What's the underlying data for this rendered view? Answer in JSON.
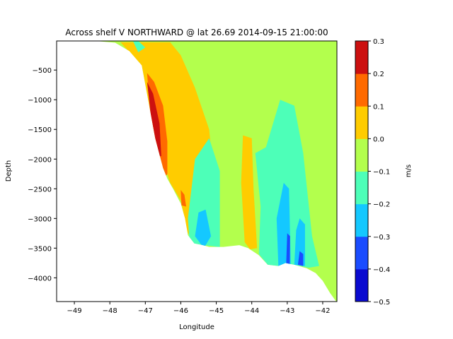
{
  "chart_data": {
    "type": "contourf",
    "title": "Across shelf V NORTHWARD @ lat 26.69 2014-09-15 21:00:00",
    "xlabel": "Longitude",
    "ylabel": "Depth",
    "xlim": [
      -49.5,
      -41.6
    ],
    "ylim": [
      -4400,
      -10
    ],
    "xticks": [
      -49,
      -48,
      -47,
      -46,
      -45,
      -44,
      -43,
      -42
    ],
    "xtick_labels": [
      "−49",
      "−48",
      "−47",
      "−46",
      "−45",
      "−44",
      "−43",
      "−42"
    ],
    "yticks": [
      -500,
      -1000,
      -1500,
      -2000,
      -2500,
      -3000,
      -3500,
      -4000
    ],
    "ytick_labels": [
      "−500",
      "−1000",
      "−1500",
      "−2000",
      "−2500",
      "−3000",
      "−3500",
      "−4000"
    ],
    "colorbar": {
      "label": "m/s",
      "levels": [
        -0.5,
        -0.4,
        -0.3,
        -0.2,
        -0.1,
        0.0,
        0.1,
        0.2,
        0.3
      ],
      "tick_labels": [
        "−0.5",
        "−0.4",
        "−0.3",
        "−0.2",
        "−0.1",
        "0.0",
        "0.1",
        "0.2",
        "0.3"
      ],
      "colors": [
        "#0a0ad0",
        "#1a4cff",
        "#14c8ff",
        "#4dffb8",
        "#b3ff4d",
        "#ffcc00",
        "#ff6a00",
        "#cc1010"
      ]
    },
    "bathymetry": [
      [
        -48.4,
        -10
      ],
      [
        -47.85,
        -40
      ],
      [
        -47.45,
        -180
      ],
      [
        -47.1,
        -420
      ],
      [
        -46.92,
        -1000
      ],
      [
        -46.72,
        -1650
      ],
      [
        -46.5,
        -2150
      ],
      [
        -46.38,
        -2330
      ],
      [
        -46.2,
        -2520
      ],
      [
        -46.0,
        -2750
      ],
      [
        -45.88,
        -3000
      ],
      [
        -45.8,
        -3280
      ],
      [
        -45.62,
        -3420
      ],
      [
        -45.38,
        -3450
      ],
      [
        -45.2,
        -3480
      ],
      [
        -44.8,
        -3480
      ],
      [
        -44.35,
        -3450
      ],
      [
        -44.1,
        -3500
      ],
      [
        -43.8,
        -3620
      ],
      [
        -43.55,
        -3780
      ],
      [
        -43.25,
        -3800
      ],
      [
        -43.05,
        -3750
      ],
      [
        -42.8,
        -3780
      ],
      [
        -42.45,
        -3840
      ],
      [
        -42.2,
        -3920
      ],
      [
        -42.0,
        -4050
      ],
      [
        -41.8,
        -4250
      ],
      [
        -41.62,
        -4400
      ]
    ],
    "regions": [
      {
        "level_band": [
          0.0,
          0.1
        ],
        "points": [
          [
            -47.7,
            -30
          ],
          [
            -46.3,
            -30
          ],
          [
            -46.0,
            -250
          ],
          [
            -45.6,
            -800
          ],
          [
            -45.2,
            -1500
          ],
          [
            -45.0,
            -2700
          ],
          [
            -44.9,
            -3300
          ],
          [
            -45.4,
            -3400
          ],
          [
            -45.8,
            -3250
          ],
          [
            -46.0,
            -2700
          ],
          [
            -46.3,
            -2400
          ],
          [
            -46.7,
            -1700
          ],
          [
            -47.0,
            -900
          ],
          [
            -47.3,
            -300
          ]
        ]
      },
      {
        "level_band": [
          0.1,
          0.2
        ],
        "points": [
          [
            -46.95,
            -550
          ],
          [
            -46.75,
            -700
          ],
          [
            -46.5,
            -1100
          ],
          [
            -46.38,
            -1700
          ],
          [
            -46.38,
            -2250
          ],
          [
            -46.5,
            -2350
          ],
          [
            -46.68,
            -2100
          ],
          [
            -46.85,
            -1300
          ]
        ]
      },
      {
        "level_band": [
          0.2,
          0.3
        ],
        "points": [
          [
            -46.95,
            -700
          ],
          [
            -46.78,
            -900
          ],
          [
            -46.6,
            -1400
          ],
          [
            -46.55,
            -1950
          ],
          [
            -46.67,
            -1950
          ],
          [
            -46.8,
            -1500
          ]
        ]
      },
      {
        "level_band": [
          0.1,
          0.2
        ],
        "points": [
          [
            -46.0,
            -2520
          ],
          [
            -45.9,
            -2600
          ],
          [
            -45.85,
            -2800
          ],
          [
            -45.98,
            -2780
          ]
        ]
      },
      {
        "level_band": [
          0.0,
          0.1
        ],
        "points": [
          [
            -44.25,
            -1600
          ],
          [
            -44.0,
            -1650
          ],
          [
            -43.95,
            -2500
          ],
          [
            -43.85,
            -3500
          ],
          [
            -44.05,
            -3520
          ],
          [
            -44.2,
            -3400
          ],
          [
            -44.3,
            -2400
          ]
        ]
      },
      {
        "level_band": [
          0.1,
          0.2
        ],
        "points": [
          [
            -43.75,
            -3350
          ],
          [
            -43.62,
            -3450
          ],
          [
            -43.6,
            -3700
          ],
          [
            -43.72,
            -3650
          ]
        ]
      },
      {
        "level_band": [
          -0.2,
          -0.1
        ],
        "points": [
          [
            -45.6,
            -2000
          ],
          [
            -45.2,
            -1650
          ],
          [
            -44.9,
            -2200
          ],
          [
            -44.9,
            -3480
          ],
          [
            -45.75,
            -3420
          ],
          [
            -45.8,
            -3000
          ]
        ]
      },
      {
        "level_band": [
          -0.3,
          -0.2
        ],
        "points": [
          [
            -45.5,
            -2900
          ],
          [
            -45.3,
            -2850
          ],
          [
            -45.15,
            -3300
          ],
          [
            -45.35,
            -3500
          ],
          [
            -45.6,
            -3300
          ]
        ]
      },
      {
        "level_band": [
          -0.2,
          -0.1
        ],
        "points": [
          [
            -43.9,
            -1900
          ],
          [
            -43.6,
            -1800
          ],
          [
            -43.2,
            -1000
          ],
          [
            -42.8,
            -1100
          ],
          [
            -42.55,
            -1900
          ],
          [
            -42.3,
            -3300
          ],
          [
            -42.1,
            -3800
          ],
          [
            -42.4,
            -3830
          ],
          [
            -42.8,
            -3780
          ],
          [
            -43.25,
            -3800
          ],
          [
            -43.55,
            -3780
          ],
          [
            -43.8,
            -3600
          ],
          [
            -43.75,
            -2800
          ]
        ]
      },
      {
        "level_band": [
          -0.3,
          -0.2
        ],
        "points": [
          [
            -43.1,
            -2400
          ],
          [
            -42.95,
            -2500
          ],
          [
            -42.9,
            -3800
          ],
          [
            -43.25,
            -3800
          ],
          [
            -43.3,
            -3000
          ]
        ]
      },
      {
        "level_band": [
          -0.3,
          -0.2
        ],
        "points": [
          [
            -42.65,
            -3000
          ],
          [
            -42.5,
            -3100
          ],
          [
            -42.5,
            -3800
          ],
          [
            -42.8,
            -3780
          ],
          [
            -42.75,
            -3200
          ]
        ]
      },
      {
        "level_band": [
          -0.4,
          -0.3
        ],
        "points": [
          [
            -43.0,
            -3250
          ],
          [
            -42.92,
            -3300
          ],
          [
            -42.93,
            -3800
          ],
          [
            -43.03,
            -3780
          ]
        ]
      },
      {
        "level_band": [
          -0.4,
          -0.3
        ],
        "points": [
          [
            -42.65,
            -3550
          ],
          [
            -42.55,
            -3600
          ],
          [
            -42.55,
            -3800
          ],
          [
            -42.7,
            -3780
          ]
        ]
      },
      {
        "level_band": [
          -0.2,
          -0.1
        ],
        "points": [
          [
            -47.35,
            -10
          ],
          [
            -47.2,
            -10
          ],
          [
            -47.0,
            -120
          ],
          [
            -47.2,
            -200
          ]
        ]
      }
    ]
  }
}
